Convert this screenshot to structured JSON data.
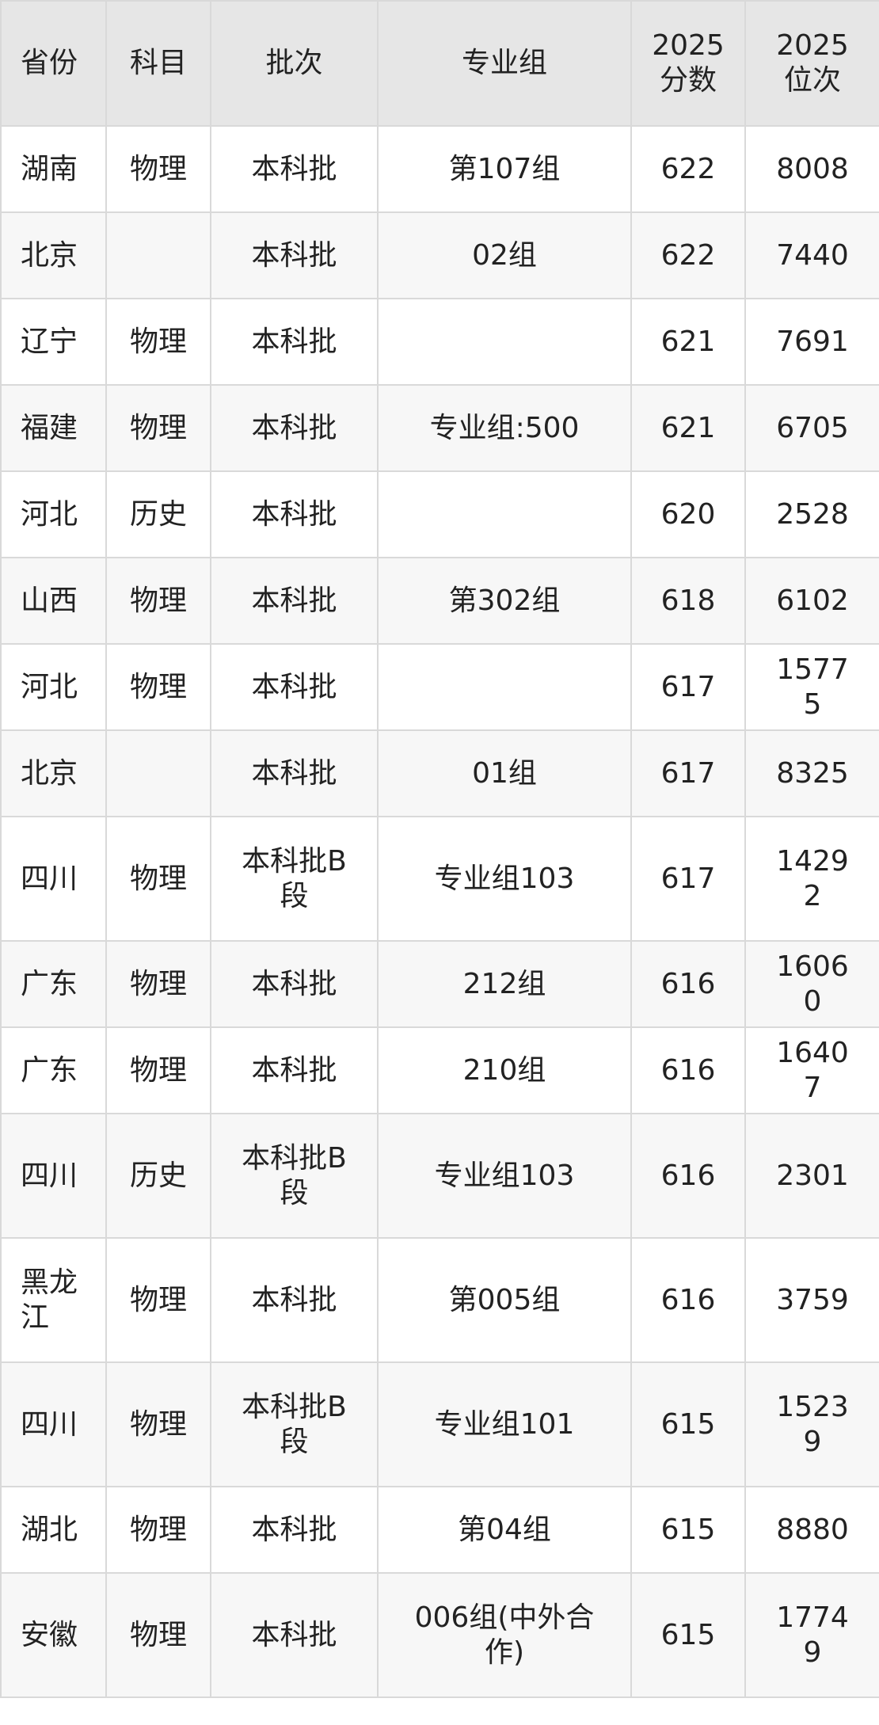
{
  "table": {
    "headers": [
      "省份",
      "科目",
      "批次",
      "专业组",
      "2025分数",
      "2025位次"
    ],
    "rows": [
      [
        "湖南",
        "物理",
        "本科批",
        "第107组",
        "622",
        "8008"
      ],
      [
        "北京",
        "",
        "本科批",
        "02组",
        "622",
        "7440"
      ],
      [
        "辽宁",
        "物理",
        "本科批",
        "",
        "621",
        "7691"
      ],
      [
        "福建",
        "物理",
        "本科批",
        "专业组:500",
        "621",
        "6705"
      ],
      [
        "河北",
        "历史",
        "本科批",
        "",
        "620",
        "2528"
      ],
      [
        "山西",
        "物理",
        "本科批",
        "第302组",
        "618",
        "6102"
      ],
      [
        "河北",
        "物理",
        "本科批",
        "",
        "617",
        "15775"
      ],
      [
        "北京",
        "",
        "本科批",
        "01组",
        "617",
        "8325"
      ],
      [
        "四川",
        "物理",
        "本科批B段",
        "专业组103",
        "617",
        "14292"
      ],
      [
        "广东",
        "物理",
        "本科批",
        "212组",
        "616",
        "16060"
      ],
      [
        "广东",
        "物理",
        "本科批",
        "210组",
        "616",
        "16407"
      ],
      [
        "四川",
        "历史",
        "本科批B段",
        "专业组103",
        "616",
        "2301"
      ],
      [
        "黑龙江",
        "物理",
        "本科批",
        "第005组",
        "616",
        "3759"
      ],
      [
        "四川",
        "物理",
        "本科批B段",
        "专业组101",
        "615",
        "15239"
      ],
      [
        "湖北",
        "物理",
        "本科批",
        "第04组",
        "615",
        "8880"
      ],
      [
        "安徽",
        "物理",
        "本科批",
        "006组(中外合作)",
        "615",
        "17749"
      ]
    ]
  }
}
